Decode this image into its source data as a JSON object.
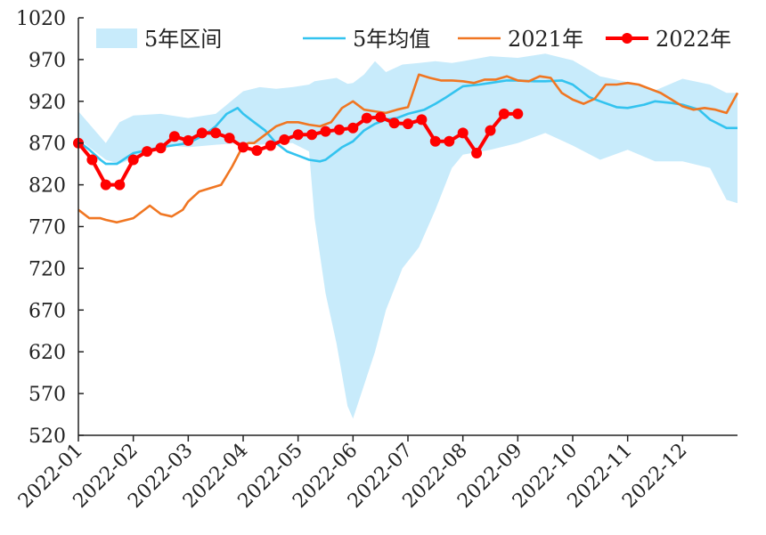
{
  "chart_data": {
    "type": "line",
    "title": "",
    "xlabel": "",
    "ylabel": "",
    "ylim": [
      520,
      1020
    ],
    "yticks": [
      520,
      570,
      620,
      670,
      720,
      770,
      820,
      870,
      920,
      970,
      1020
    ],
    "xlim": [
      0,
      12
    ],
    "xticks": [
      "2022-01",
      "2022-02",
      "2022-03",
      "2022-04",
      "2022-05",
      "2022-06",
      "2022-07",
      "2022-08",
      "2022-09",
      "2022-10",
      "2022-11",
      "2022-12"
    ],
    "grid": false,
    "legend_position": "top",
    "range_band": {
      "name": "5年区间",
      "color": "#c8ebfb",
      "x": [
        0.0,
        0.5,
        0.75,
        1.0,
        1.5,
        2.0,
        2.5,
        3.0,
        3.3,
        3.6,
        3.9,
        4.2,
        4.3,
        4.5,
        4.7,
        4.9,
        5.0,
        5.2,
        5.4,
        5.6,
        5.9,
        6.2,
        6.5,
        6.8,
        7.0,
        7.5,
        8.0,
        8.5,
        9.0,
        9.5,
        10.0,
        10.5,
        11.0,
        11.5,
        11.8,
        12.0
      ],
      "upper": [
        908,
        870,
        895,
        903,
        905,
        900,
        905,
        932,
        937,
        935,
        937,
        940,
        944,
        946,
        948,
        941,
        942,
        952,
        968,
        955,
        964,
        966,
        968,
        966,
        968,
        974,
        972,
        977,
        969,
        950,
        943,
        933,
        947,
        940,
        930,
        930
      ],
      "lower": [
        875,
        850,
        845,
        852,
        868,
        865,
        868,
        870,
        868,
        870,
        870,
        860,
        780,
        690,
        630,
        555,
        540,
        580,
        620,
        670,
        720,
        745,
        790,
        840,
        856,
        862,
        870,
        882,
        867,
        850,
        862,
        848,
        848,
        840,
        802,
        798
      ]
    },
    "series": [
      {
        "name": "5年均值",
        "color": "#33c3ef",
        "x": [
          0.0,
          0.2,
          0.4,
          0.5,
          0.7,
          1.0,
          1.3,
          1.5,
          1.8,
          2.0,
          2.3,
          2.5,
          2.7,
          2.9,
          3.0,
          3.2,
          3.4,
          3.6,
          3.8,
          4.0,
          4.2,
          4.4,
          4.5,
          4.6,
          4.8,
          5.0,
          5.2,
          5.4,
          5.6,
          5.8,
          6.0,
          6.3,
          6.5,
          6.7,
          7.0,
          7.3,
          7.5,
          7.8,
          8.0,
          8.3,
          8.5,
          8.8,
          9.0,
          9.3,
          9.5,
          9.8,
          10.0,
          10.3,
          10.5,
          10.8,
          11.0,
          11.3,
          11.5,
          11.8,
          12.0
        ],
        "values": [
          872,
          862,
          850,
          845,
          845,
          858,
          862,
          865,
          868,
          870,
          880,
          890,
          905,
          912,
          905,
          895,
          885,
          870,
          860,
          855,
          850,
          848,
          850,
          855,
          865,
          872,
          885,
          893,
          898,
          900,
          905,
          910,
          917,
          925,
          938,
          940,
          942,
          945,
          945,
          944,
          944,
          945,
          940,
          925,
          920,
          913,
          912,
          916,
          920,
          918,
          916,
          910,
          898,
          888,
          888
        ]
      },
      {
        "name": "2021年",
        "color": "#f07622",
        "x": [
          0.0,
          0.2,
          0.4,
          0.5,
          0.7,
          1.0,
          1.3,
          1.5,
          1.7,
          1.9,
          2.0,
          2.2,
          2.4,
          2.6,
          2.8,
          3.0,
          3.1,
          3.2,
          3.4,
          3.6,
          3.8,
          4.0,
          4.2,
          4.4,
          4.6,
          4.8,
          5.0,
          5.2,
          5.4,
          5.6,
          5.8,
          6.0,
          6.2,
          6.4,
          6.6,
          6.8,
          7.0,
          7.2,
          7.4,
          7.6,
          7.8,
          8.0,
          8.2,
          8.4,
          8.6,
          8.8,
          9.0,
          9.2,
          9.4,
          9.6,
          9.8,
          10.0,
          10.2,
          10.4,
          10.6,
          10.8,
          11.0,
          11.2,
          11.4,
          11.6,
          11.8,
          12.0
        ],
        "values": [
          790,
          780,
          780,
          778,
          775,
          780,
          795,
          785,
          782,
          790,
          800,
          812,
          816,
          820,
          842,
          867,
          870,
          870,
          880,
          890,
          895,
          895,
          892,
          890,
          895,
          912,
          920,
          910,
          908,
          906,
          910,
          913,
          952,
          948,
          945,
          945,
          944,
          942,
          946,
          946,
          950,
          945,
          944,
          950,
          948,
          930,
          922,
          917,
          923,
          940,
          940,
          942,
          940,
          935,
          930,
          922,
          914,
          910,
          912,
          910,
          906,
          930
        ]
      },
      {
        "name": "2022年",
        "color": "#ff0000",
        "marker": "circle",
        "x": [
          0.0,
          0.25,
          0.5,
          0.75,
          1.0,
          1.25,
          1.5,
          1.75,
          2.0,
          2.25,
          2.5,
          2.75,
          3.0,
          3.25,
          3.5,
          3.75,
          4.0,
          4.25,
          4.5,
          4.75,
          5.0,
          5.25,
          5.5,
          5.75,
          6.0,
          6.25,
          6.5,
          6.75,
          7.0,
          7.25,
          7.5,
          7.75,
          8.0
        ],
        "values": [
          870,
          850,
          820,
          820,
          850,
          860,
          864,
          878,
          873,
          882,
          882,
          876,
          865,
          861,
          867,
          874,
          880,
          880,
          884,
          886,
          888,
          900,
          901,
          894,
          893,
          898,
          872,
          872,
          882,
          858,
          885,
          905,
          905
        ]
      }
    ],
    "legend": [
      {
        "label": "5年区间",
        "kind": "band",
        "color": "#c8ebfb"
      },
      {
        "label": "5年均值",
        "kind": "line",
        "color": "#33c3ef"
      },
      {
        "label": "2021年",
        "kind": "line",
        "color": "#f07622"
      },
      {
        "label": "2022年",
        "kind": "line-marker",
        "color": "#ff0000"
      }
    ]
  }
}
